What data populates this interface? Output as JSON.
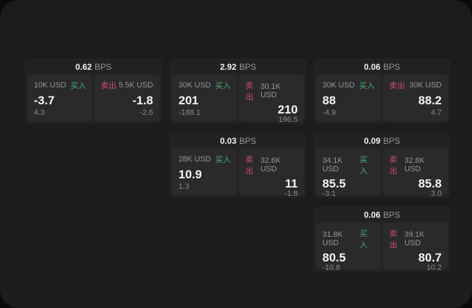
{
  "colors": {
    "outer_background": "#0a0a0a",
    "screen_background": "#1c1c1e",
    "card_background": "#222224",
    "panel_background": "#2a2a2c",
    "text_primary": "#f2f2f3",
    "text_secondary": "#97979b",
    "buy_green": "#4daf6e",
    "sell_red": "#d04f67"
  },
  "cards": [
    {
      "bps": "0.62",
      "bps_unit": "BPS",
      "buy": {
        "amount": "10K USD",
        "side": "买入",
        "value": "-3.7",
        "delta": "4.3"
      },
      "sell": {
        "side": "卖出",
        "amount": "5.5K USD",
        "value": "-1.8",
        "delta": "-2.6"
      }
    },
    {
      "bps": "2.92",
      "bps_unit": "BPS",
      "buy": {
        "amount": "30K USD",
        "side": "买入",
        "value": "201",
        "delta": "-188.1"
      },
      "sell": {
        "side": "卖出",
        "amount": "30.1K USD",
        "value": "210",
        "delta": "196.5"
      }
    },
    {
      "bps": "0.06",
      "bps_unit": "BPS",
      "buy": {
        "amount": "30K USD",
        "side": "买入",
        "value": "88",
        "delta": "-4.9"
      },
      "sell": {
        "side": "卖出",
        "amount": "30K USD",
        "value": "88.2",
        "delta": "4.7"
      }
    },
    {
      "bps": "0.03",
      "bps_unit": "BPS",
      "buy": {
        "amount": "28K USD",
        "side": "买入",
        "value": "10.9",
        "delta": "1.3"
      },
      "sell": {
        "side": "卖出",
        "amount": "32.6K USD",
        "value": "11",
        "delta": "-1.8"
      }
    },
    {
      "bps": "0.09",
      "bps_unit": "BPS",
      "buy": {
        "amount": "34.1K USD",
        "side": "买入",
        "value": "85.5",
        "delta": "-3.1"
      },
      "sell": {
        "side": "卖出",
        "amount": "32.8K USD",
        "value": "85.8",
        "delta": "3.0"
      }
    },
    {
      "bps": "0.06",
      "bps_unit": "BPS",
      "buy": {
        "amount": "31.8K USD",
        "side": "买入",
        "value": "80.5",
        "delta": "-10.8"
      },
      "sell": {
        "side": "卖出",
        "amount": "39.1K USD",
        "value": "80.7",
        "delta": "10.2"
      }
    }
  ]
}
